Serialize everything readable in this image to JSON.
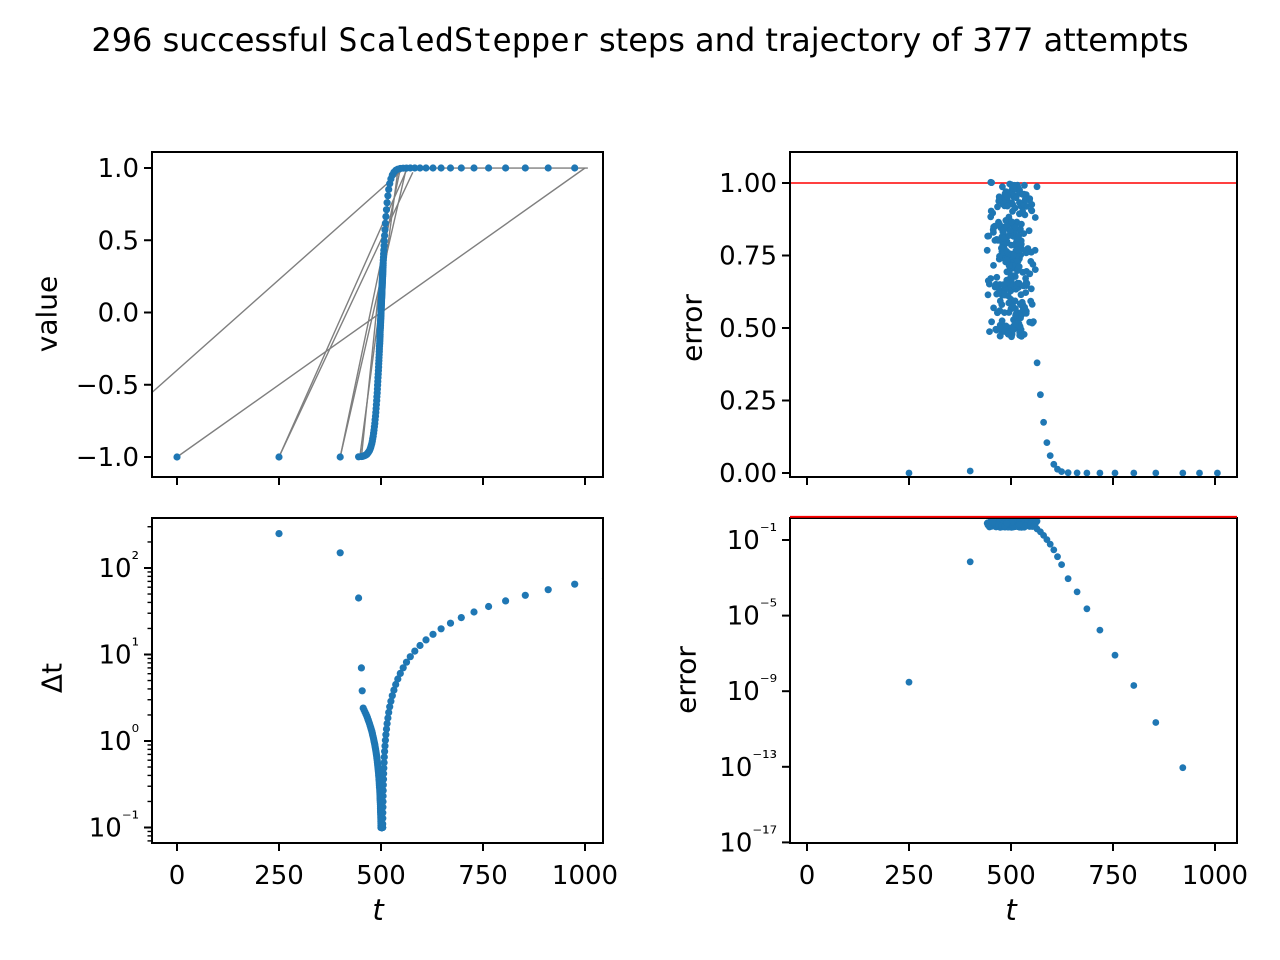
{
  "title": {
    "prefix": "296 successful ",
    "code": "ScaledStepper",
    "suffix": " steps and trajectory of 377 attempts"
  },
  "colors": {
    "marker": "#1f77b4",
    "trajectory": "#7f7f7f",
    "threshold": "#ff0000",
    "axes": "#000000",
    "background": "#ffffff"
  },
  "chart_data": [
    {
      "id": "value-vs-t",
      "type": "scatter",
      "position": "top-left",
      "xlabel": "t",
      "ylabel": "value",
      "xlim": [
        -61,
        1044
      ],
      "ylim": [
        -1.1,
        1.1
      ],
      "xticks": [
        0,
        250,
        500,
        750,
        1000
      ],
      "xtick_labels": [
        "0",
        "250",
        "500",
        "750",
        "1000"
      ],
      "xtick_labels_shown": false,
      "yticks": [
        1.0,
        0.5,
        0.0,
        -0.5,
        -1.0
      ],
      "ytick_labels": [
        "1.0",
        "0.5",
        "0.0",
        "−0.5",
        "−1.0"
      ],
      "curve_model": "value = tanh((t - 500) / 15)",
      "initial_point": [
        0,
        -1
      ],
      "trajectory_segments": [
        [
          [
            0,
            -1
          ],
          [
            1000,
            1
          ]
        ],
        [
          [
            250,
            -1
          ],
          [
            565,
            1
          ]
        ],
        [
          [
            250,
            -1
          ],
          [
            578,
            0.97
          ]
        ],
        [
          [
            400,
            -1
          ],
          [
            562,
            0.998
          ]
        ],
        [
          [
            400,
            -1
          ],
          [
            547,
            0.99
          ]
        ],
        [
          [
            448,
            -1
          ],
          [
            542,
            0.996
          ]
        ],
        [
          [
            452,
            -1
          ],
          [
            524,
            0.96
          ]
        ],
        [
          [
            -60,
            -0.55
          ],
          [
            558,
            1.0
          ]
        ],
        [
          [
            560,
            0.9997
          ],
          [
            1007,
            0.9997
          ]
        ]
      ],
      "step_sequence": {
        "head": [
          [
            250,
            250
          ],
          [
            400,
            150
          ],
          [
            445,
            45
          ],
          [
            452,
            7
          ],
          [
            454,
            3.8
          ]
        ],
        "descend": {
          "start_t": 454,
          "start_dt": 2.4,
          "factor": 0.95,
          "min_dt": 0.097
        },
        "floor": {
          "count": 40,
          "dt": 0.1
        },
        "ascend": {
          "start_dt": 0.11,
          "factor": 1.16,
          "end_t": 1007
        }
      }
    },
    {
      "id": "error-linear",
      "type": "scatter",
      "position": "top-right",
      "xlabel": "t",
      "ylabel": "error",
      "xlim": [
        -61,
        1044
      ],
      "ylim": [
        -0.035,
        1.075
      ],
      "xticks": [
        0,
        250,
        500,
        750,
        1000
      ],
      "xtick_labels_shown": false,
      "yticks": [
        1.0,
        0.75,
        0.5,
        0.25,
        0.0
      ],
      "ytick_labels": [
        "1.00",
        "0.75",
        "0.50",
        "0.25",
        "0.00"
      ],
      "threshold_line": 1.0,
      "cluster": {
        "count": 300,
        "t_range": [
          436,
          566
        ],
        "error_range": [
          0.47,
          1.005
        ],
        "seed": 42
      },
      "tail": [
        [
          564,
          0.38
        ],
        [
          572,
          0.27
        ],
        [
          580,
          0.175
        ],
        [
          588,
          0.105
        ],
        [
          596,
          0.06
        ],
        [
          605,
          0.03
        ],
        [
          614,
          0.013
        ],
        [
          624,
          0.005
        ],
        [
          640,
          0.0009
        ],
        [
          662,
          0.00018
        ],
        [
          686,
          2.3e-05
        ],
        [
          718,
          1.7e-06
        ],
        [
          755,
          8e-08
        ],
        [
          801,
          2e-09
        ],
        [
          855,
          2.2e-11
        ],
        [
          921,
          9e-14
        ],
        [
          962,
          0
        ],
        [
          1006,
          0
        ]
      ],
      "isolated": [
        [
          250,
          3e-09
        ],
        [
          400,
          0.007
        ]
      ]
    },
    {
      "id": "dt-vs-t",
      "type": "scatter",
      "position": "bottom-left",
      "xlabel": "t",
      "ylabel": "Δt",
      "yscale": "log",
      "xlim": [
        -61,
        1044
      ],
      "xticks": [
        0,
        250,
        500,
        750,
        1000
      ],
      "xtick_labels": [
        "0",
        "250",
        "500",
        "750",
        "1000"
      ],
      "ytick_exponents": [
        2,
        1,
        0,
        -1
      ],
      "ytick_labels": [
        "10²",
        "10¹",
        "10⁰",
        "10⁻¹"
      ],
      "points_source": "(t_i, Δt_i) of successful steps from step_sequence; V-shape with minimum Δt ≈ 0.1 at t ≈ 500, maxima 250 at t=250 and ~80 at t=1000"
    },
    {
      "id": "error-log",
      "type": "scatter",
      "position": "bottom-right",
      "xlabel": "t",
      "ylabel": "error",
      "yscale": "log",
      "xlim": [
        -61,
        1044
      ],
      "xticks": [
        0,
        250,
        500,
        750,
        1000
      ],
      "xtick_labels": [
        "0",
        "250",
        "500",
        "750",
        "1000"
      ],
      "ytick_exponents": [
        -1,
        -5,
        -9,
        -13,
        -17
      ],
      "ytick_labels": [
        "10⁻¹",
        "10⁻⁵",
        "10⁻⁹",
        "10⁻¹³",
        "10⁻¹⁷"
      ],
      "threshold_line": 1.0,
      "points_source": "same error data as top-right (cluster, tail, isolated); zero-error points omitted on log scale"
    }
  ]
}
